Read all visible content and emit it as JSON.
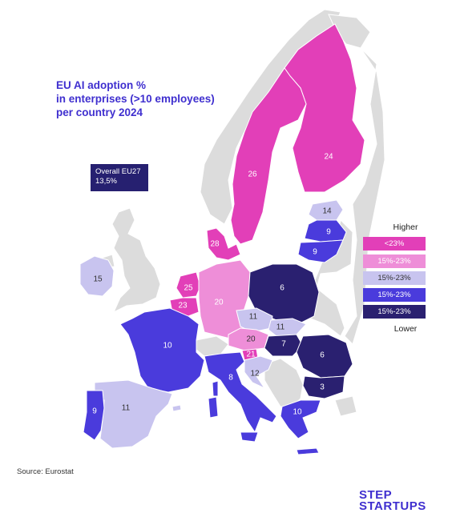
{
  "title": {
    "line1": "EU AI adoption %",
    "line2": "in enterprises (>10 employees)",
    "line3": "per country 2024"
  },
  "overall": {
    "line1": "Overall EU27",
    "line2": "13,5%"
  },
  "legend": {
    "higher": "Higher",
    "lower": "Lower",
    "items": [
      {
        "label": "<23%",
        "color": "#e23fb8",
        "text_color": "#ffffff"
      },
      {
        "label": "15%-23%",
        "color": "#ee8ed8",
        "text_color": "#ffffff"
      },
      {
        "label": "15%-23%",
        "color": "#c8c4ef",
        "text_color": "#333333"
      },
      {
        "label": "15%-23%",
        "color": "#4a3bdc",
        "text_color": "#ffffff"
      },
      {
        "label": "15%-23%",
        "color": "#2a2070",
        "text_color": "#ffffff"
      }
    ]
  },
  "countries": [
    {
      "name": "Finland",
      "value": "24"
    },
    {
      "name": "Sweden",
      "value": "26"
    },
    {
      "name": "Estonia",
      "value": "14"
    },
    {
      "name": "Latvia",
      "value": "9"
    },
    {
      "name": "Lithuania",
      "value": "9"
    },
    {
      "name": "Denmark",
      "value": "28"
    },
    {
      "name": "Ireland",
      "value": "15"
    },
    {
      "name": "Netherlands",
      "value": "25"
    },
    {
      "name": "Belgium",
      "value": "23"
    },
    {
      "name": "Germany",
      "value": "20"
    },
    {
      "name": "Poland",
      "value": "6"
    },
    {
      "name": "Czechia",
      "value": "11"
    },
    {
      "name": "Slovakia",
      "value": "11"
    },
    {
      "name": "Austria",
      "value": "20"
    },
    {
      "name": "Slovenia",
      "value": "21"
    },
    {
      "name": "Hungary",
      "value": "7"
    },
    {
      "name": "Romania",
      "value": "6"
    },
    {
      "name": "Croatia",
      "value": "12"
    },
    {
      "name": "Bulgaria",
      "value": "3"
    },
    {
      "name": "Greece",
      "value": "10"
    },
    {
      "name": "France",
      "value": "10"
    },
    {
      "name": "Italy",
      "value": "8"
    },
    {
      "name": "Spain",
      "value": "11"
    },
    {
      "name": "Portugal",
      "value": "9"
    }
  ],
  "source": "Source: Eurostat",
  "logo": {
    "line1": "STEP",
    "line2": "STARTUPS"
  }
}
